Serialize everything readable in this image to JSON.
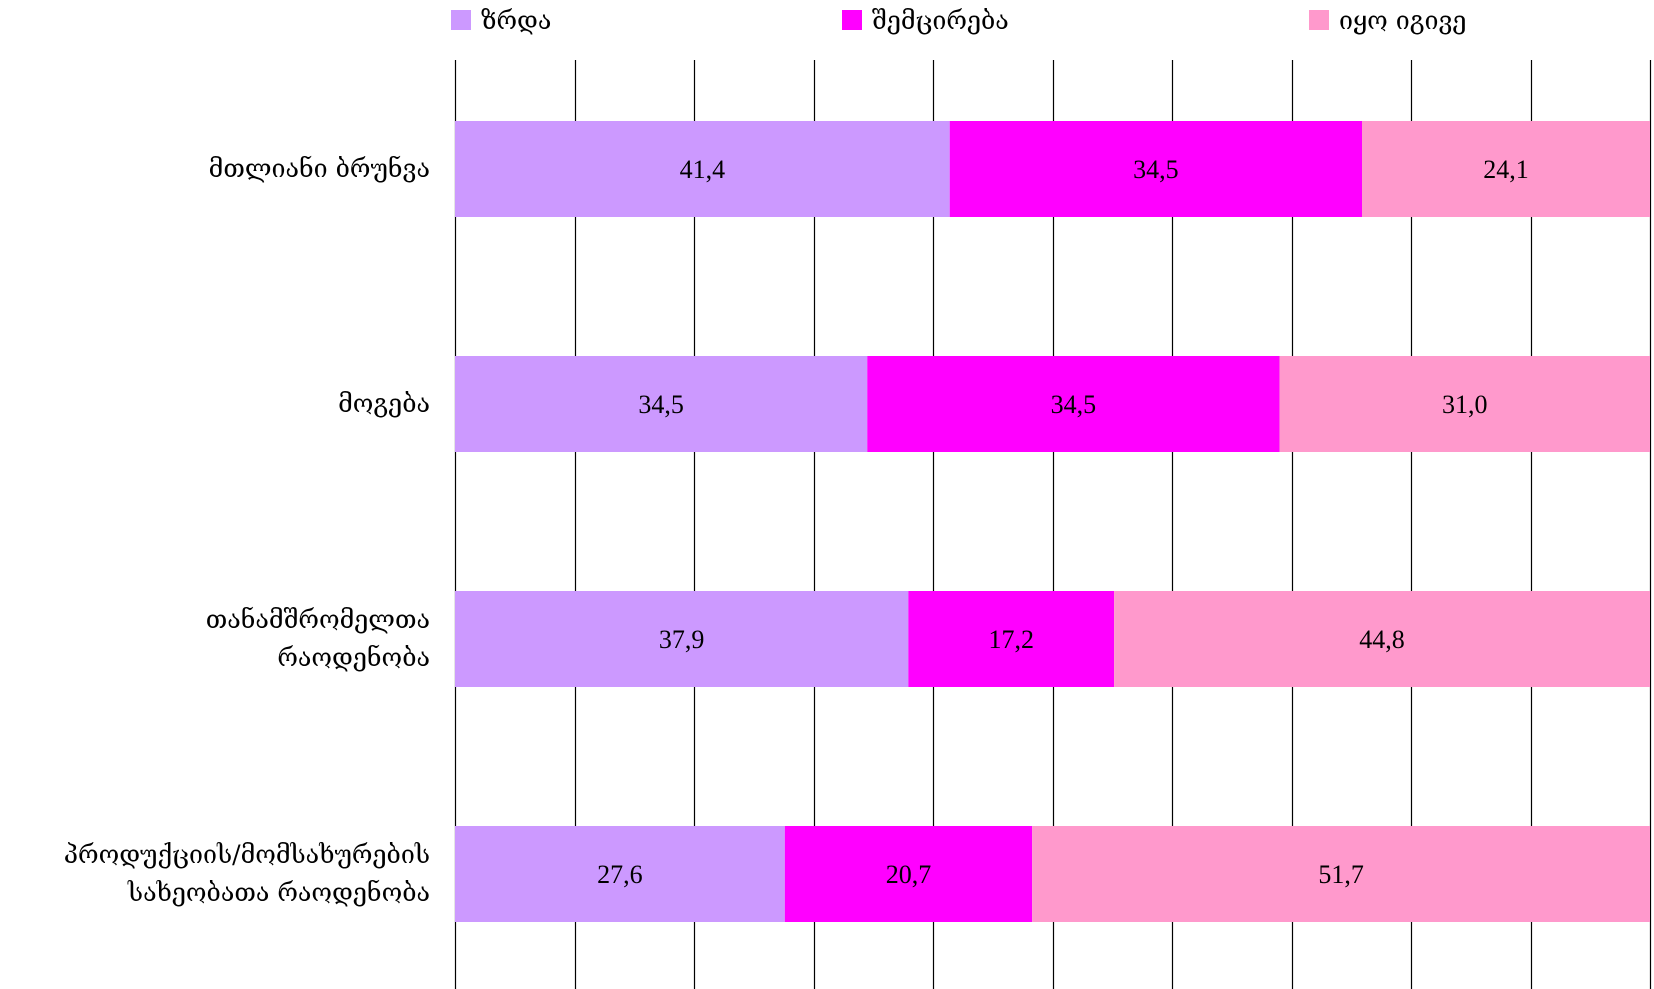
{
  "chart_data": {
    "type": "bar",
    "orientation": "horizontal",
    "stacked": "percent",
    "categories": [
      [
        "მთლიანი ბრუნვა"
      ],
      [
        "მოგება"
      ],
      [
        "თანამშრომელთა",
        "რაოდენობა"
      ],
      [
        "პროდუქციის/მომსახურების",
        "სახეობათა რაოდენობა"
      ]
    ],
    "series": [
      {
        "name": "ზრდა",
        "color": "#cc99ff",
        "values": [
          41.4,
          34.5,
          37.9,
          27.6
        ],
        "labels": [
          "41,4",
          "34,5",
          "37,9",
          "27,6"
        ]
      },
      {
        "name": "შემცირება",
        "color": "#ff00ff",
        "values": [
          34.5,
          34.5,
          17.2,
          20.7
        ],
        "labels": [
          "34,5",
          "34,5",
          "17,2",
          "20,7"
        ]
      },
      {
        "name": "იყო იგივე",
        "color": "#ff99cc",
        "values": [
          24.1,
          31.0,
          44.8,
          51.7
        ],
        "labels": [
          "24,1",
          "31,0",
          "44,8",
          "51,7"
        ]
      }
    ],
    "xlim": [
      0,
      100
    ],
    "grid": true,
    "legend": "top"
  }
}
